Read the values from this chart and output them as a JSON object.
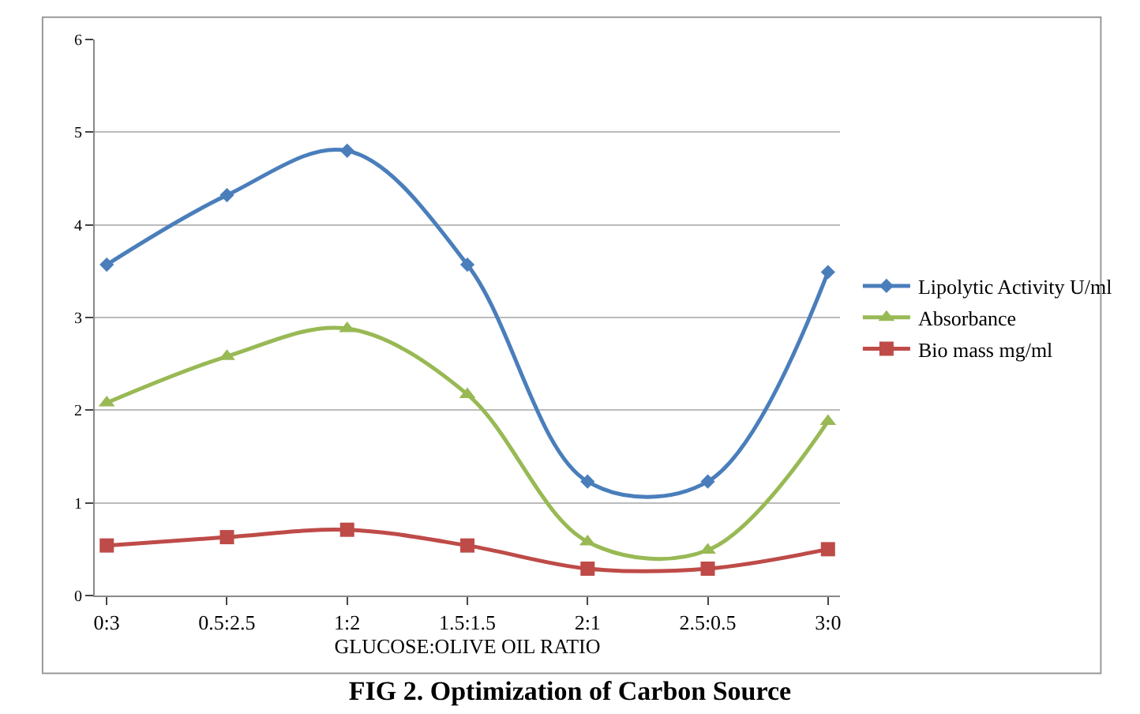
{
  "chart_data": {
    "type": "line",
    "title": "FIG 2. Optimization of Carbon Source",
    "xlabel": "GLUCOSE:OLIVE OIL RATIO",
    "categories": [
      "0:3",
      "0.5:2.5",
      "1:2",
      "1.5:1.5",
      "2:1",
      "2.5:0.5",
      "3:0"
    ],
    "series": [
      {
        "name": "Lipolytic Activity U/ml",
        "color": "#4a7ebb",
        "marker": "diamond",
        "values": [
          3.57,
          4.32,
          4.8,
          3.57,
          1.23,
          1.23,
          3.49
        ]
      },
      {
        "name": "Absorbance",
        "color": "#98b954",
        "marker": "triangle",
        "values": [
          2.08,
          2.58,
          2.88,
          2.17,
          0.58,
          0.49,
          1.88
        ]
      },
      {
        "name": "Bio mass mg/ml",
        "color": "#be4b48",
        "marker": "square",
        "values": [
          0.54,
          0.63,
          0.71,
          0.54,
          0.29,
          0.29,
          0.5
        ]
      }
    ],
    "ylim": [
      0,
      6
    ],
    "yticks": [
      0,
      1,
      2,
      3,
      4,
      5,
      6
    ],
    "grid": "y",
    "legend": "right"
  }
}
